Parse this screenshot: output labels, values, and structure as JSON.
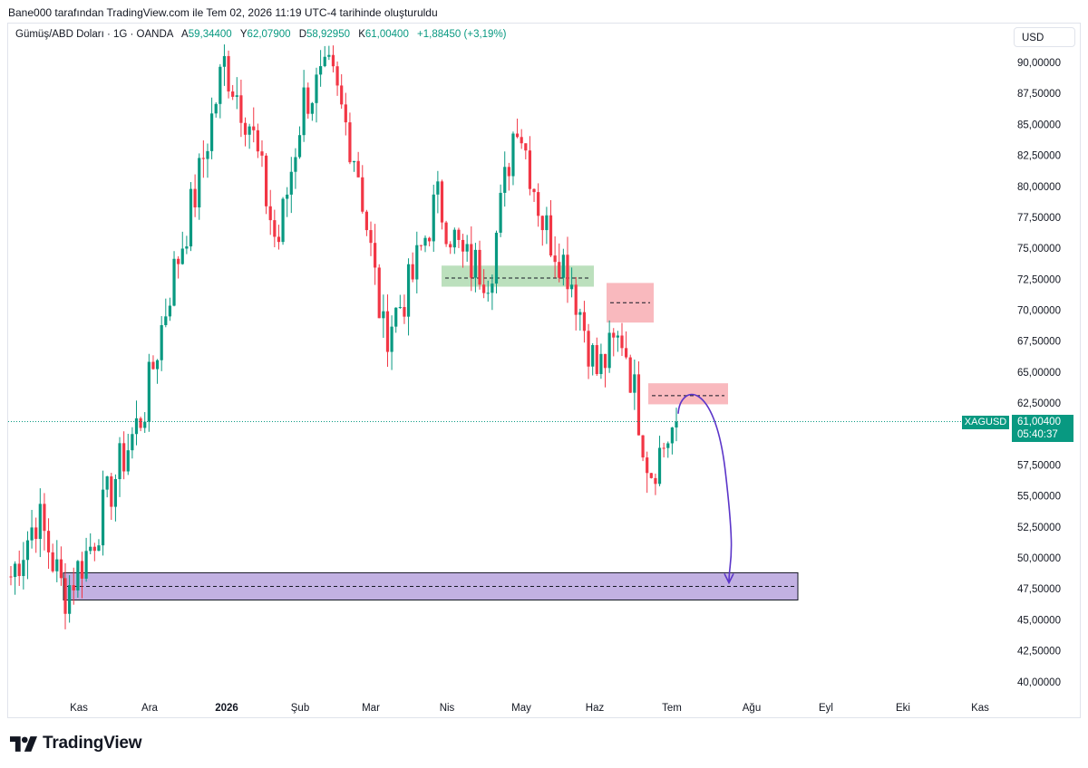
{
  "caption": "Bane000 tarafından TradingView.com ile Tem 02, 2026 11:19 UTC-4 tarihinde oluşturuldu",
  "legend": {
    "title": "Gümüş/ABD Doları · 1G · OANDA",
    "open_label": "A",
    "open": "59,34400",
    "high_label": "Y",
    "high": "62,07900",
    "low_label": "D",
    "low": "58,92950",
    "close_label": "K",
    "close": "61,00400",
    "change": "+1,88450 (+3,19%)"
  },
  "currency": "USD",
  "ticker": "XAGUSD",
  "last_price": "61,00400",
  "countdown": "05:40:37",
  "brand": "TradingView",
  "colors": {
    "up": "#089981",
    "down": "#f23645",
    "accent": "#089981",
    "support_zone": "#b39ddb",
    "demand_zone": "#a5d6a7",
    "supply_zone": "#f7a1a8",
    "arrow": "#5b35c9"
  },
  "chart_data": {
    "type": "candlestick",
    "symbol": "XAGUSD",
    "timeframe": "1G",
    "y_axis_ticks": [
      "90,00000",
      "87,50000",
      "85,00000",
      "82,50000",
      "80,00000",
      "77,50000",
      "75,00000",
      "72,50000",
      "70,00000",
      "67,50000",
      "65,00000",
      "62,50000",
      "57,50000",
      "55,00000",
      "52,50000",
      "50,00000",
      "47,50000",
      "45,00000",
      "42,50000",
      "40,00000"
    ],
    "x_axis_ticks": [
      "Kas",
      "Ara",
      "2026",
      "Şub",
      "Mar",
      "Nis",
      "May",
      "Haz",
      "Tem",
      "Ağu",
      "Eyl",
      "Eki",
      "Kas"
    ],
    "ylim": [
      38,
      93
    ],
    "last_close": 61.004,
    "price_path": [
      {
        "month": "Kas",
        "value": 48.5
      },
      {
        "month": "Kas",
        "value": 53.5
      },
      {
        "month": "Kas",
        "value": 47.0
      },
      {
        "month": "Ara",
        "value": 51.0
      },
      {
        "month": "Ara",
        "value": 57.0
      },
      {
        "month": "Ara",
        "value": 62.0
      },
      {
        "month": "2026",
        "value": 72.0
      },
      {
        "month": "2026",
        "value": 80.0
      },
      {
        "month": "2026",
        "value": 90.0
      },
      {
        "month": "Şub",
        "value": 85.0
      },
      {
        "month": "Şub",
        "value": 75.0
      },
      {
        "month": "Şub",
        "value": 87.0
      },
      {
        "month": "Mar",
        "value": 89.0
      },
      {
        "month": "Mar",
        "value": 82.0
      },
      {
        "month": "Mar",
        "value": 68.0
      },
      {
        "month": "Nis",
        "value": 72.0
      },
      {
        "month": "Nis",
        "value": 79.0
      },
      {
        "month": "Nis",
        "value": 74.0
      },
      {
        "month": "May",
        "value": 73.0
      },
      {
        "month": "May",
        "value": 86.0
      },
      {
        "month": "May",
        "value": 77.0
      },
      {
        "month": "Haz",
        "value": 73.0
      },
      {
        "month": "Haz",
        "value": 65.0
      },
      {
        "month": "Haz",
        "value": 68.0
      },
      {
        "month": "Haz",
        "value": 57.0
      },
      {
        "month": "Tem",
        "value": 61.0
      }
    ],
    "zones": [
      {
        "kind": "support",
        "low": 46.6,
        "high": 48.8,
        "midline": 47.7
      },
      {
        "kind": "demand",
        "low": 71.9,
        "high": 73.6,
        "midline": 72.6
      },
      {
        "kind": "supply",
        "low": 69.0,
        "high": 72.2,
        "midline": 70.6
      },
      {
        "kind": "supply",
        "low": 62.4,
        "high": 64.1,
        "midline": 63.1
      }
    ],
    "projection": {
      "from": 63.1,
      "to": 47.7
    }
  }
}
